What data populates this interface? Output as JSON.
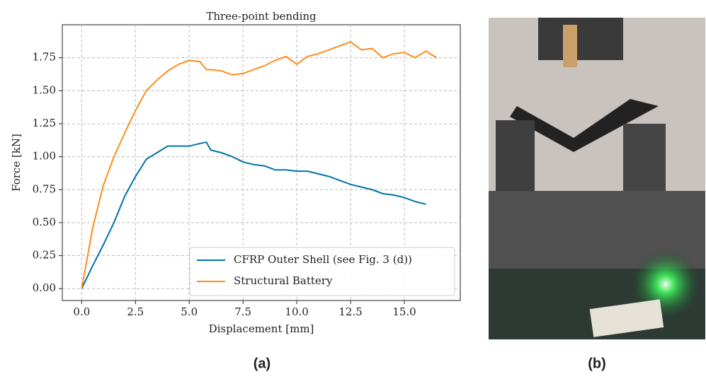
{
  "chart_data": {
    "type": "line",
    "title": "Three-point bending",
    "xlabel": "Displacement [mm]",
    "ylabel": "Force [kN]",
    "x": [
      0,
      0.5,
      1,
      1.5,
      2,
      2.5,
      3,
      3.5,
      4,
      4.5,
      5,
      5.5,
      5.8,
      6,
      6.5,
      7,
      7.5,
      8,
      8.5,
      9,
      9.5,
      10,
      10.5,
      11,
      11.5,
      12,
      12.5,
      13,
      13.5,
      14,
      14.5,
      15,
      15.5,
      16,
      16.5
    ],
    "series": [
      {
        "name": "CFRP Outer Shell (see Fig. 3 (d))",
        "color": "#0072a8",
        "values": [
          0,
          0.17,
          0.33,
          0.5,
          0.7,
          0.85,
          0.98,
          1.03,
          1.08,
          1.08,
          1.08,
          1.1,
          1.11,
          1.05,
          1.03,
          1.0,
          0.96,
          0.94,
          0.93,
          0.9,
          0.9,
          0.89,
          0.89,
          0.87,
          0.85,
          0.82,
          0.79,
          0.77,
          0.75,
          0.72,
          0.71,
          0.69,
          0.66,
          0.64,
          null
        ]
      },
      {
        "name": "Structural Battery",
        "color": "#ff8c1a",
        "values": [
          0,
          0.45,
          0.78,
          1.0,
          1.18,
          1.35,
          1.5,
          1.58,
          1.65,
          1.7,
          1.73,
          1.72,
          1.66,
          1.66,
          1.65,
          1.62,
          1.63,
          1.66,
          1.69,
          1.73,
          1.76,
          1.7,
          1.76,
          1.78,
          1.81,
          1.84,
          1.87,
          1.81,
          1.82,
          1.75,
          1.78,
          1.79,
          1.75,
          1.8,
          1.75
        ]
      }
    ],
    "xlim": [
      -0.9,
      17.6
    ],
    "ylim": [
      -0.09,
      2.0
    ],
    "xticks": [
      {
        "value": 0,
        "label": "0.0"
      },
      2.5,
      {
        "value": 5,
        "label": "5.0"
      },
      7.5,
      {
        "value": 10,
        "label": "10.0"
      },
      12.5,
      {
        "value": 15,
        "label": "15.0"
      }
    ],
    "yticks": [
      {
        "value": 0,
        "label": "0.00"
      },
      0.25,
      {
        "value": 0.5,
        "label": "0.50"
      },
      0.75,
      {
        "value": 1,
        "label": "1.00"
      },
      1.25,
      {
        "value": 1.5,
        "label": "1.50"
      },
      1.75
    ],
    "grid": true,
    "legend": "lower right"
  },
  "panel_labels": [
    "(a)",
    "(b)"
  ]
}
